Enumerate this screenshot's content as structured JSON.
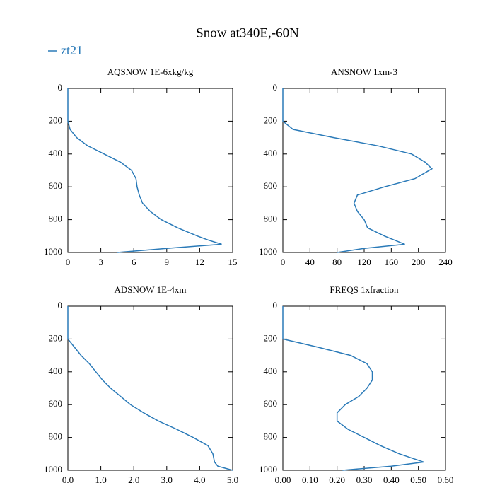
{
  "title": "Snow at340E,-60N",
  "legend": "zt21",
  "color": "#2a7ab8",
  "chart_data": [
    {
      "type": "line",
      "title": "AQSNOW  1E-6xkg/kg",
      "levels": [
        0,
        100,
        200,
        250,
        300,
        350,
        400,
        450,
        500,
        550,
        600,
        650,
        700,
        750,
        800,
        850,
        900,
        925,
        950,
        975,
        1000
      ],
      "values": [
        0,
        0,
        0,
        0.2,
        0.8,
        1.8,
        3.3,
        4.8,
        5.8,
        6.2,
        6.3,
        6.5,
        6.8,
        7.5,
        8.5,
        10,
        11.8,
        12.8,
        14,
        9,
        4.5
      ],
      "xlim": [
        0,
        15
      ],
      "xticks": [
        0,
        3,
        6,
        9,
        12,
        15
      ],
      "ylim": [
        1000,
        0
      ],
      "yticks": [
        0,
        200,
        400,
        600,
        800,
        1000
      ]
    },
    {
      "type": "line",
      "title": "ANSNOW  1xm-3",
      "levels": [
        0,
        100,
        200,
        250,
        300,
        350,
        400,
        450,
        490,
        550,
        600,
        650,
        700,
        750,
        800,
        850,
        900,
        950,
        975,
        1000
      ],
      "values": [
        0,
        0,
        0,
        15,
        75,
        140,
        190,
        210,
        220,
        195,
        150,
        110,
        105,
        110,
        120,
        125,
        150,
        180,
        120,
        80
      ],
      "xlim": [
        0,
        240
      ],
      "xticks": [
        0,
        40,
        80,
        120,
        160,
        200,
        240
      ],
      "ylim": [
        1000,
        0
      ],
      "yticks": [
        0,
        200,
        400,
        600,
        800,
        1000
      ]
    },
    {
      "type": "line",
      "title": "ADSNOW  1E-4xm",
      "levels": [
        0,
        100,
        200,
        250,
        300,
        350,
        400,
        450,
        500,
        550,
        600,
        650,
        700,
        750,
        800,
        850,
        900,
        950,
        975,
        1000
      ],
      "values": [
        0,
        0,
        0,
        0.2,
        0.4,
        0.65,
        0.85,
        1.05,
        1.3,
        1.6,
        1.9,
        2.3,
        2.75,
        3.3,
        3.8,
        4.25,
        4.4,
        4.45,
        4.55,
        5.0
      ],
      "xlim": [
        0,
        5
      ],
      "xticks": [
        {
          "value": 0,
          "label": "0.0"
        },
        {
          "value": 1,
          "label": "1.0"
        },
        {
          "value": 2,
          "label": "2.0"
        },
        {
          "value": 3,
          "label": "3.0"
        },
        {
          "value": 4,
          "label": "4.0"
        },
        {
          "value": 5,
          "label": "5.0"
        }
      ],
      "ylim": [
        1000,
        0
      ],
      "yticks": [
        0,
        200,
        400,
        600,
        800,
        1000
      ]
    },
    {
      "type": "line",
      "title": "FREQS  1xfraction",
      "levels": [
        0,
        100,
        200,
        250,
        300,
        350,
        400,
        450,
        500,
        550,
        600,
        650,
        700,
        750,
        800,
        850,
        900,
        950,
        975,
        1000
      ],
      "values": [
        0,
        0,
        0,
        0.13,
        0.25,
        0.31,
        0.33,
        0.33,
        0.31,
        0.28,
        0.23,
        0.2,
        0.2,
        0.24,
        0.3,
        0.36,
        0.43,
        0.52,
        0.4,
        0.22
      ],
      "xlim": [
        0,
        0.6
      ],
      "xticks": [
        {
          "value": 0,
          "label": "0.00"
        },
        {
          "value": 0.1,
          "label": "0.10"
        },
        {
          "value": 0.2,
          "label": "0.20"
        },
        {
          "value": 0.3,
          "label": "0.30"
        },
        {
          "value": 0.4,
          "label": "0.40"
        },
        {
          "value": 0.5,
          "label": "0.50"
        },
        {
          "value": 0.6,
          "label": "0.60"
        }
      ],
      "ylim": [
        1000,
        0
      ],
      "yticks": [
        0,
        200,
        400,
        600,
        800,
        1000
      ]
    }
  ]
}
